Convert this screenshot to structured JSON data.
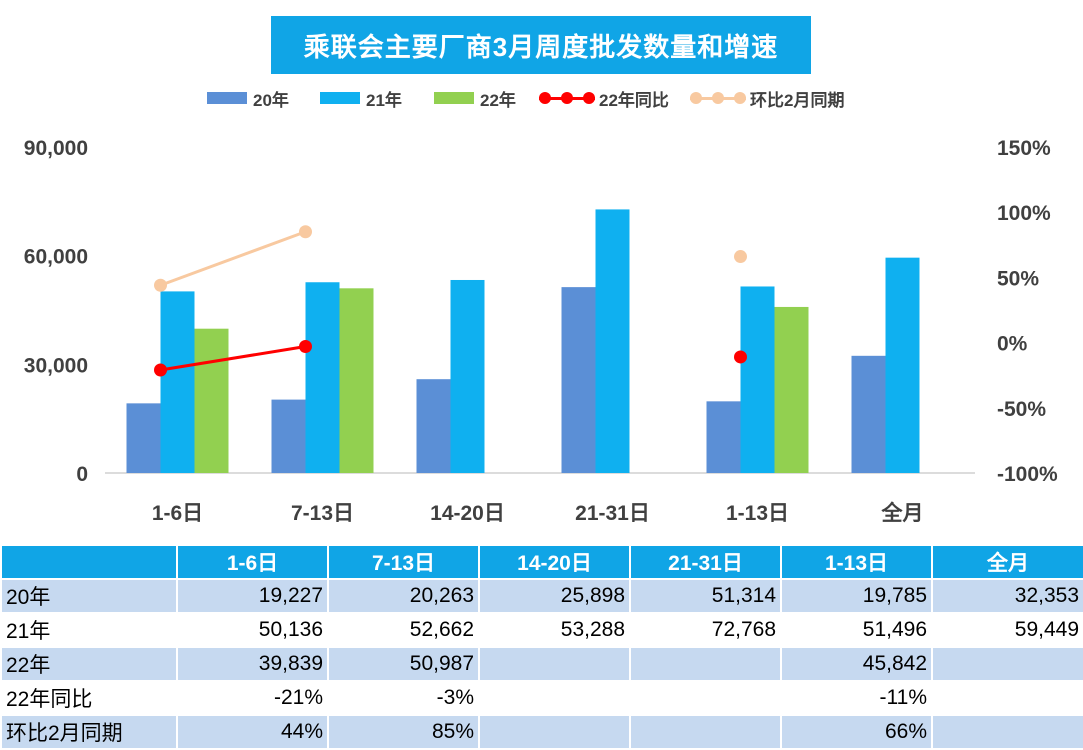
{
  "chart_data": {
    "type": "bar",
    "title": "乘联会主要厂商3月周度批发数量和增速",
    "categories": [
      "1-6日",
      "7-13日",
      "14-20日",
      "21-31日",
      "1-13日",
      "全月"
    ],
    "series": [
      {
        "name": "20年",
        "type": "bar",
        "axis": "left",
        "color": "#5b8fd6",
        "values": [
          19227,
          20263,
          25898,
          51314,
          19785,
          32353
        ]
      },
      {
        "name": "21年",
        "type": "bar",
        "axis": "left",
        "color": "#0fb0f0",
        "values": [
          50136,
          52662,
          53288,
          72768,
          51496,
          59449
        ]
      },
      {
        "name": "22年",
        "type": "bar",
        "axis": "left",
        "color": "#92d050",
        "values": [
          39839,
          50987,
          null,
          null,
          45842,
          null
        ]
      },
      {
        "name": "22年同比",
        "type": "line",
        "axis": "right",
        "color": "#ff0000",
        "values": [
          -21,
          -3,
          null,
          null,
          -11,
          null
        ]
      },
      {
        "name": "环比2月同期",
        "type": "line",
        "axis": "right",
        "color": "#f8c9a0",
        "values": [
          44,
          85,
          null,
          null,
          66,
          null
        ]
      }
    ],
    "y_left": {
      "ylim": [
        0,
        90000
      ],
      "ticks": [
        0,
        30000,
        60000,
        90000
      ],
      "tick_labels": [
        "0",
        "30,000",
        "60,000",
        "90,000"
      ]
    },
    "y_right": {
      "ylim": [
        -100,
        150
      ],
      "ticks": [
        -100,
        -50,
        0,
        50,
        100,
        150
      ],
      "tick_labels": [
        "-100%",
        "-50%",
        "0%",
        "50%",
        "100%",
        "150%"
      ]
    },
    "legend_position": "top",
    "grid": false
  },
  "table": {
    "header": [
      "",
      "1-6日",
      "7-13日",
      "14-20日",
      "21-31日",
      "1-13日",
      "全月"
    ],
    "rows": [
      {
        "label": "20年",
        "cells": [
          "19,227",
          "20,263",
          "25,898",
          "51,314",
          "19,785",
          "32,353"
        ]
      },
      {
        "label": "21年",
        "cells": [
          "50,136",
          "52,662",
          "53,288",
          "72,768",
          "51,496",
          "59,449"
        ]
      },
      {
        "label": "22年",
        "cells": [
          "39,839",
          "50,987",
          "",
          "",
          "45,842",
          ""
        ]
      },
      {
        "label": "22年同比",
        "cells": [
          "-21%",
          "-3%",
          "",
          "",
          "-11%",
          ""
        ]
      },
      {
        "label": "环比2月同期",
        "cells": [
          "44%",
          "85%",
          "",
          "",
          "66%",
          ""
        ]
      }
    ]
  }
}
